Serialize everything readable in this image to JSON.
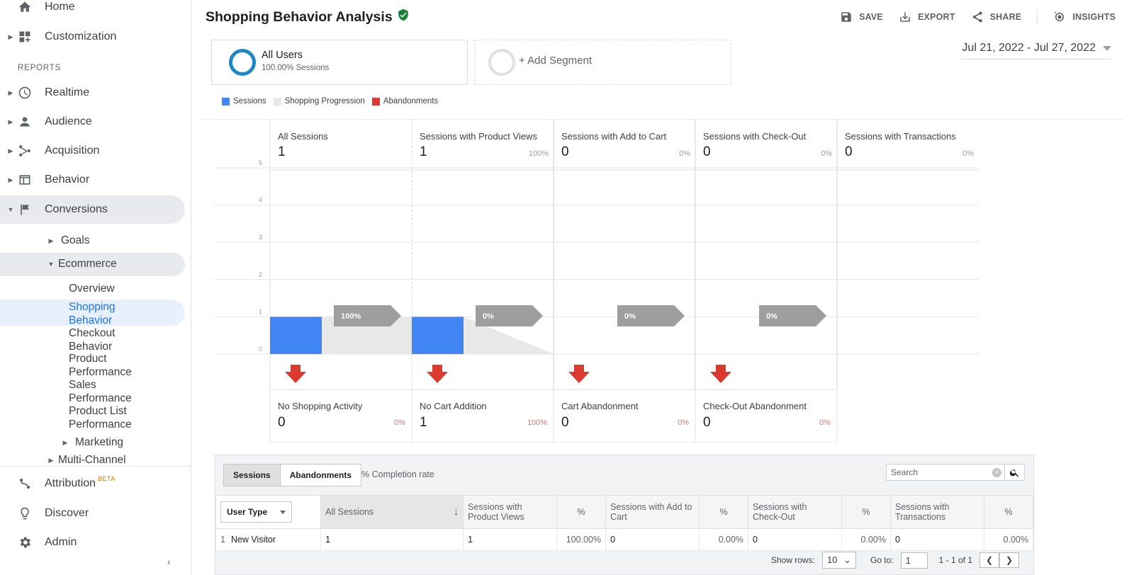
{
  "sidebar": {
    "home": "Home",
    "customization": "Customization",
    "reports_label": "REPORTS",
    "realtime": "Realtime",
    "audience": "Audience",
    "acquisition": "Acquisition",
    "behavior": "Behavior",
    "conversions": "Conversions",
    "goals": "Goals",
    "ecommerce": "Ecommerce",
    "overview": "Overview",
    "shopping_behavior": "Shopping Behavior",
    "checkout_behavior": "Checkout Behavior",
    "product_performance": "Product Performance",
    "sales_performance": "Sales Performance",
    "product_list_performance": "Product List Performance",
    "marketing": "Marketing",
    "multi_channel": "Multi-Channel",
    "attribution": "Attribution",
    "attribution_badge": "BETA",
    "discover": "Discover",
    "admin": "Admin"
  },
  "header": {
    "title": "Shopping Behavior Analysis",
    "save": "SAVE",
    "export": "EXPORT",
    "share": "SHARE",
    "insights": "INSIGHTS"
  },
  "segments": {
    "active_name": "All Users",
    "active_sub": "100.00% Sessions",
    "add": "+ Add Segment"
  },
  "date_range": "Jul 21, 2022 - Jul 27, 2022",
  "legend": {
    "sessions": "Sessions",
    "progression": "Shopping Progression",
    "abandonments": "Abandonments"
  },
  "colors": {
    "sessions": "#4285f4",
    "progression": "#e8e8e8",
    "abandonments": "#db3b2f",
    "arrow": "#9e9e9e"
  },
  "chart_data": {
    "type": "bar",
    "ylim": [
      0,
      5
    ],
    "yticks": [
      "0",
      "1",
      "2",
      "3",
      "4",
      "5"
    ],
    "stages": [
      {
        "label": "All Sessions",
        "value": "1",
        "pct": ""
      },
      {
        "label": "Sessions with Product Views",
        "value": "1",
        "pct": "100%"
      },
      {
        "label": "Sessions with Add to Cart",
        "value": "0",
        "pct": "0%"
      },
      {
        "label": "Sessions with Check-Out",
        "value": "0",
        "pct": "0%"
      },
      {
        "label": "Sessions with Transactions",
        "value": "0",
        "pct": "0%"
      }
    ],
    "sessions": [
      1,
      1,
      0,
      0,
      0
    ],
    "progression_labels": [
      "100%",
      "0%",
      "0%",
      "0%"
    ],
    "abandonments": [
      {
        "label": "No Shopping Activity",
        "value": "0",
        "pct": "0%"
      },
      {
        "label": "No Cart Addition",
        "value": "1",
        "pct": "100%"
      },
      {
        "label": "Cart Abandonment",
        "value": "0",
        "pct": "0%"
      },
      {
        "label": "Check-Out Abandonment",
        "value": "0",
        "pct": "0%"
      }
    ]
  },
  "table": {
    "tab_sessions": "Sessions",
    "tab_abandonments": "Abandonments",
    "completion_label": "% Completion rate",
    "search_placeholder": "Search",
    "dimension": "User Type",
    "columns": {
      "all_sessions": "All Sessions",
      "product_views": "Sessions with Product Views",
      "add_to_cart": "Sessions with Add to Cart",
      "check_out": "Sessions with Check-Out",
      "transactions": "Sessions with Transactions",
      "pct": "%"
    },
    "rows": [
      {
        "num": "1",
        "user_type": "New Visitor",
        "all_sessions": "1",
        "product_views": "1",
        "product_views_pct": "100.00%",
        "add_to_cart": "0",
        "add_to_cart_pct": "0.00%",
        "check_out": "0",
        "check_out_pct": "0.00%",
        "transactions": "0",
        "transactions_pct": "0.00%"
      }
    ],
    "show_rows_label": "Show rows:",
    "show_rows_value": "10",
    "goto_label": "Go to:",
    "goto_value": "1",
    "range": "1 - 1 of 1"
  }
}
